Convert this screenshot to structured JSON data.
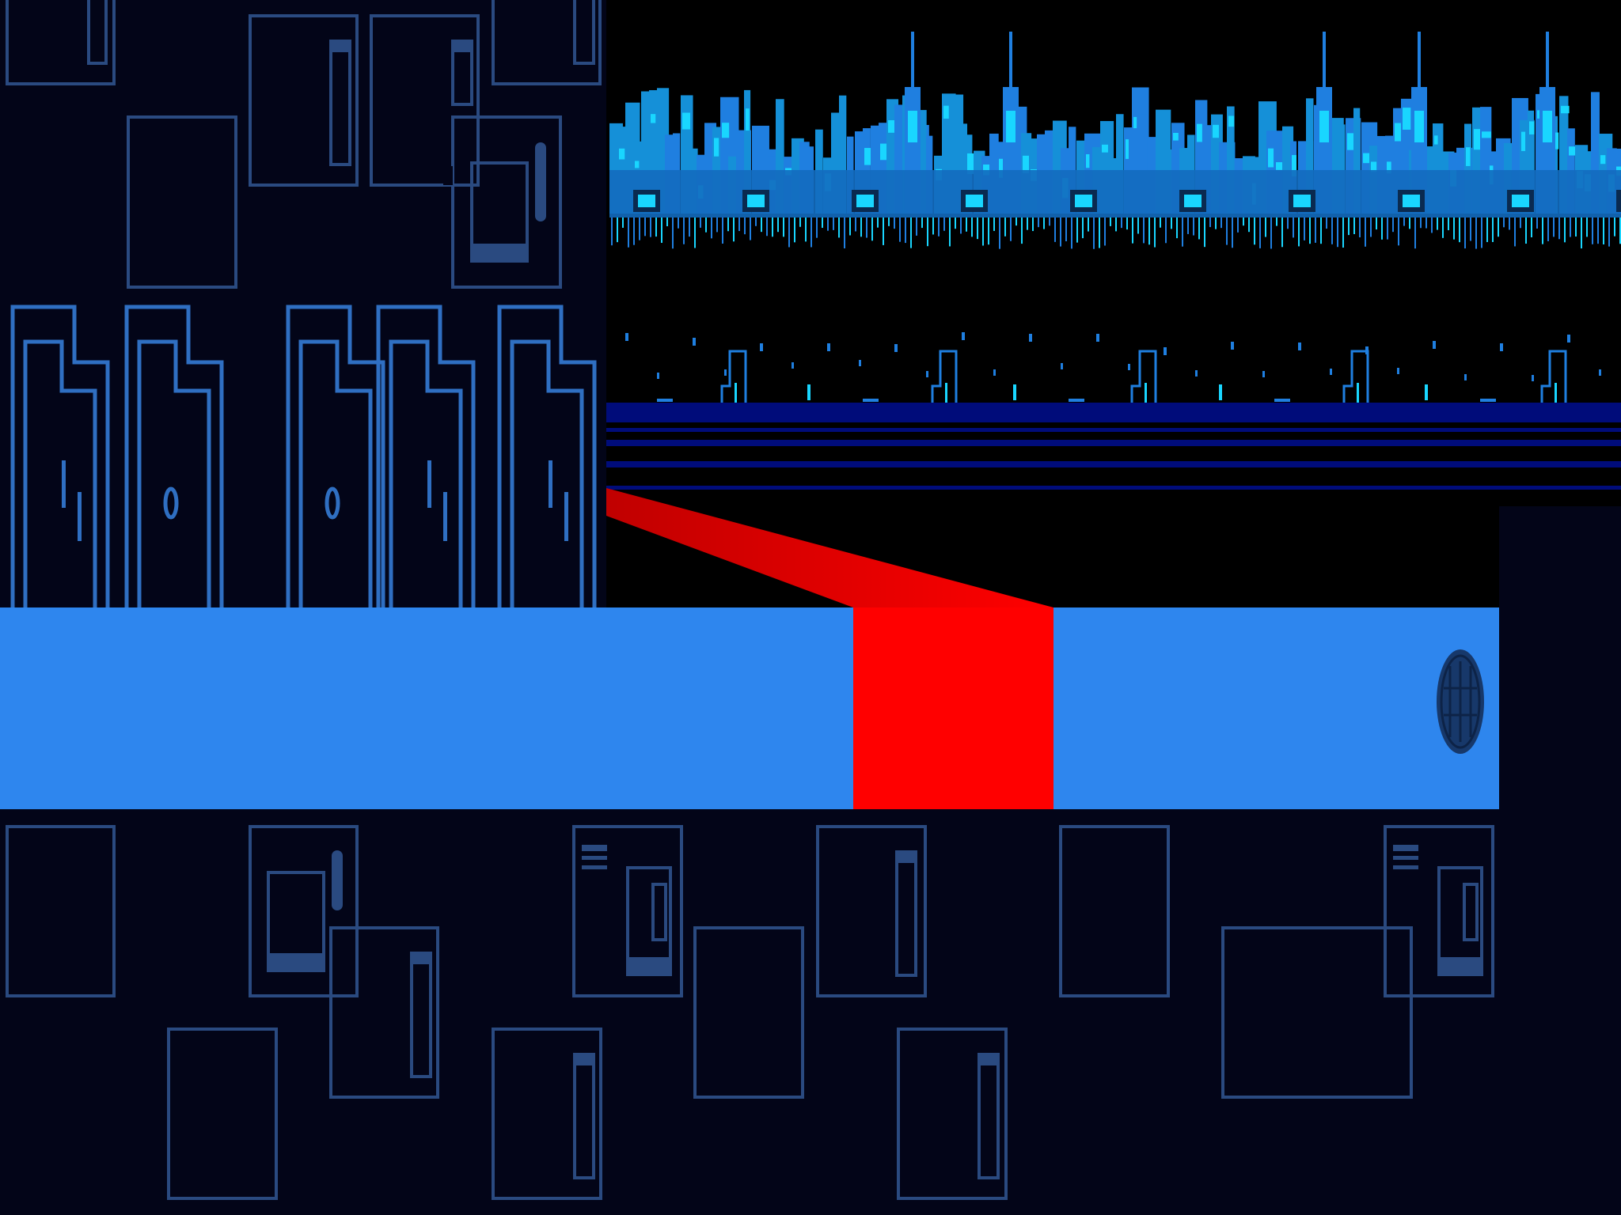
{
  "scene": {
    "type": "game-overworld",
    "hud": {}
  },
  "colors": {
    "background": "#000000",
    "wall_dark": "#030518",
    "wall_outline": "#2a4a80",
    "door_outline": "#2f6fc2",
    "walkway": "#2e86ee",
    "red_beam": "#ff0000",
    "red_beam_far": "#c00000",
    "skyline_blue": "#1f7fe0",
    "skyline_cyan": "#19d6ff",
    "horizon_blue": "#000c7a",
    "manhole": "#17386a"
  },
  "objects": [
    {
      "name": "apartment-wall-upper",
      "icon": "wall-panels"
    },
    {
      "name": "apartment-doors",
      "count": 5,
      "icon": "door-icon"
    },
    {
      "name": "city-skyline",
      "icon": "skyline"
    },
    {
      "name": "horizon-stripes",
      "icon": "stripes"
    },
    {
      "name": "red-beam-path",
      "icon": "beam"
    },
    {
      "name": "blue-walkway",
      "icon": "floor"
    },
    {
      "name": "manhole-cover",
      "icon": "manhole-icon"
    },
    {
      "name": "apartment-wall-lower",
      "icon": "wall-panels"
    }
  ]
}
